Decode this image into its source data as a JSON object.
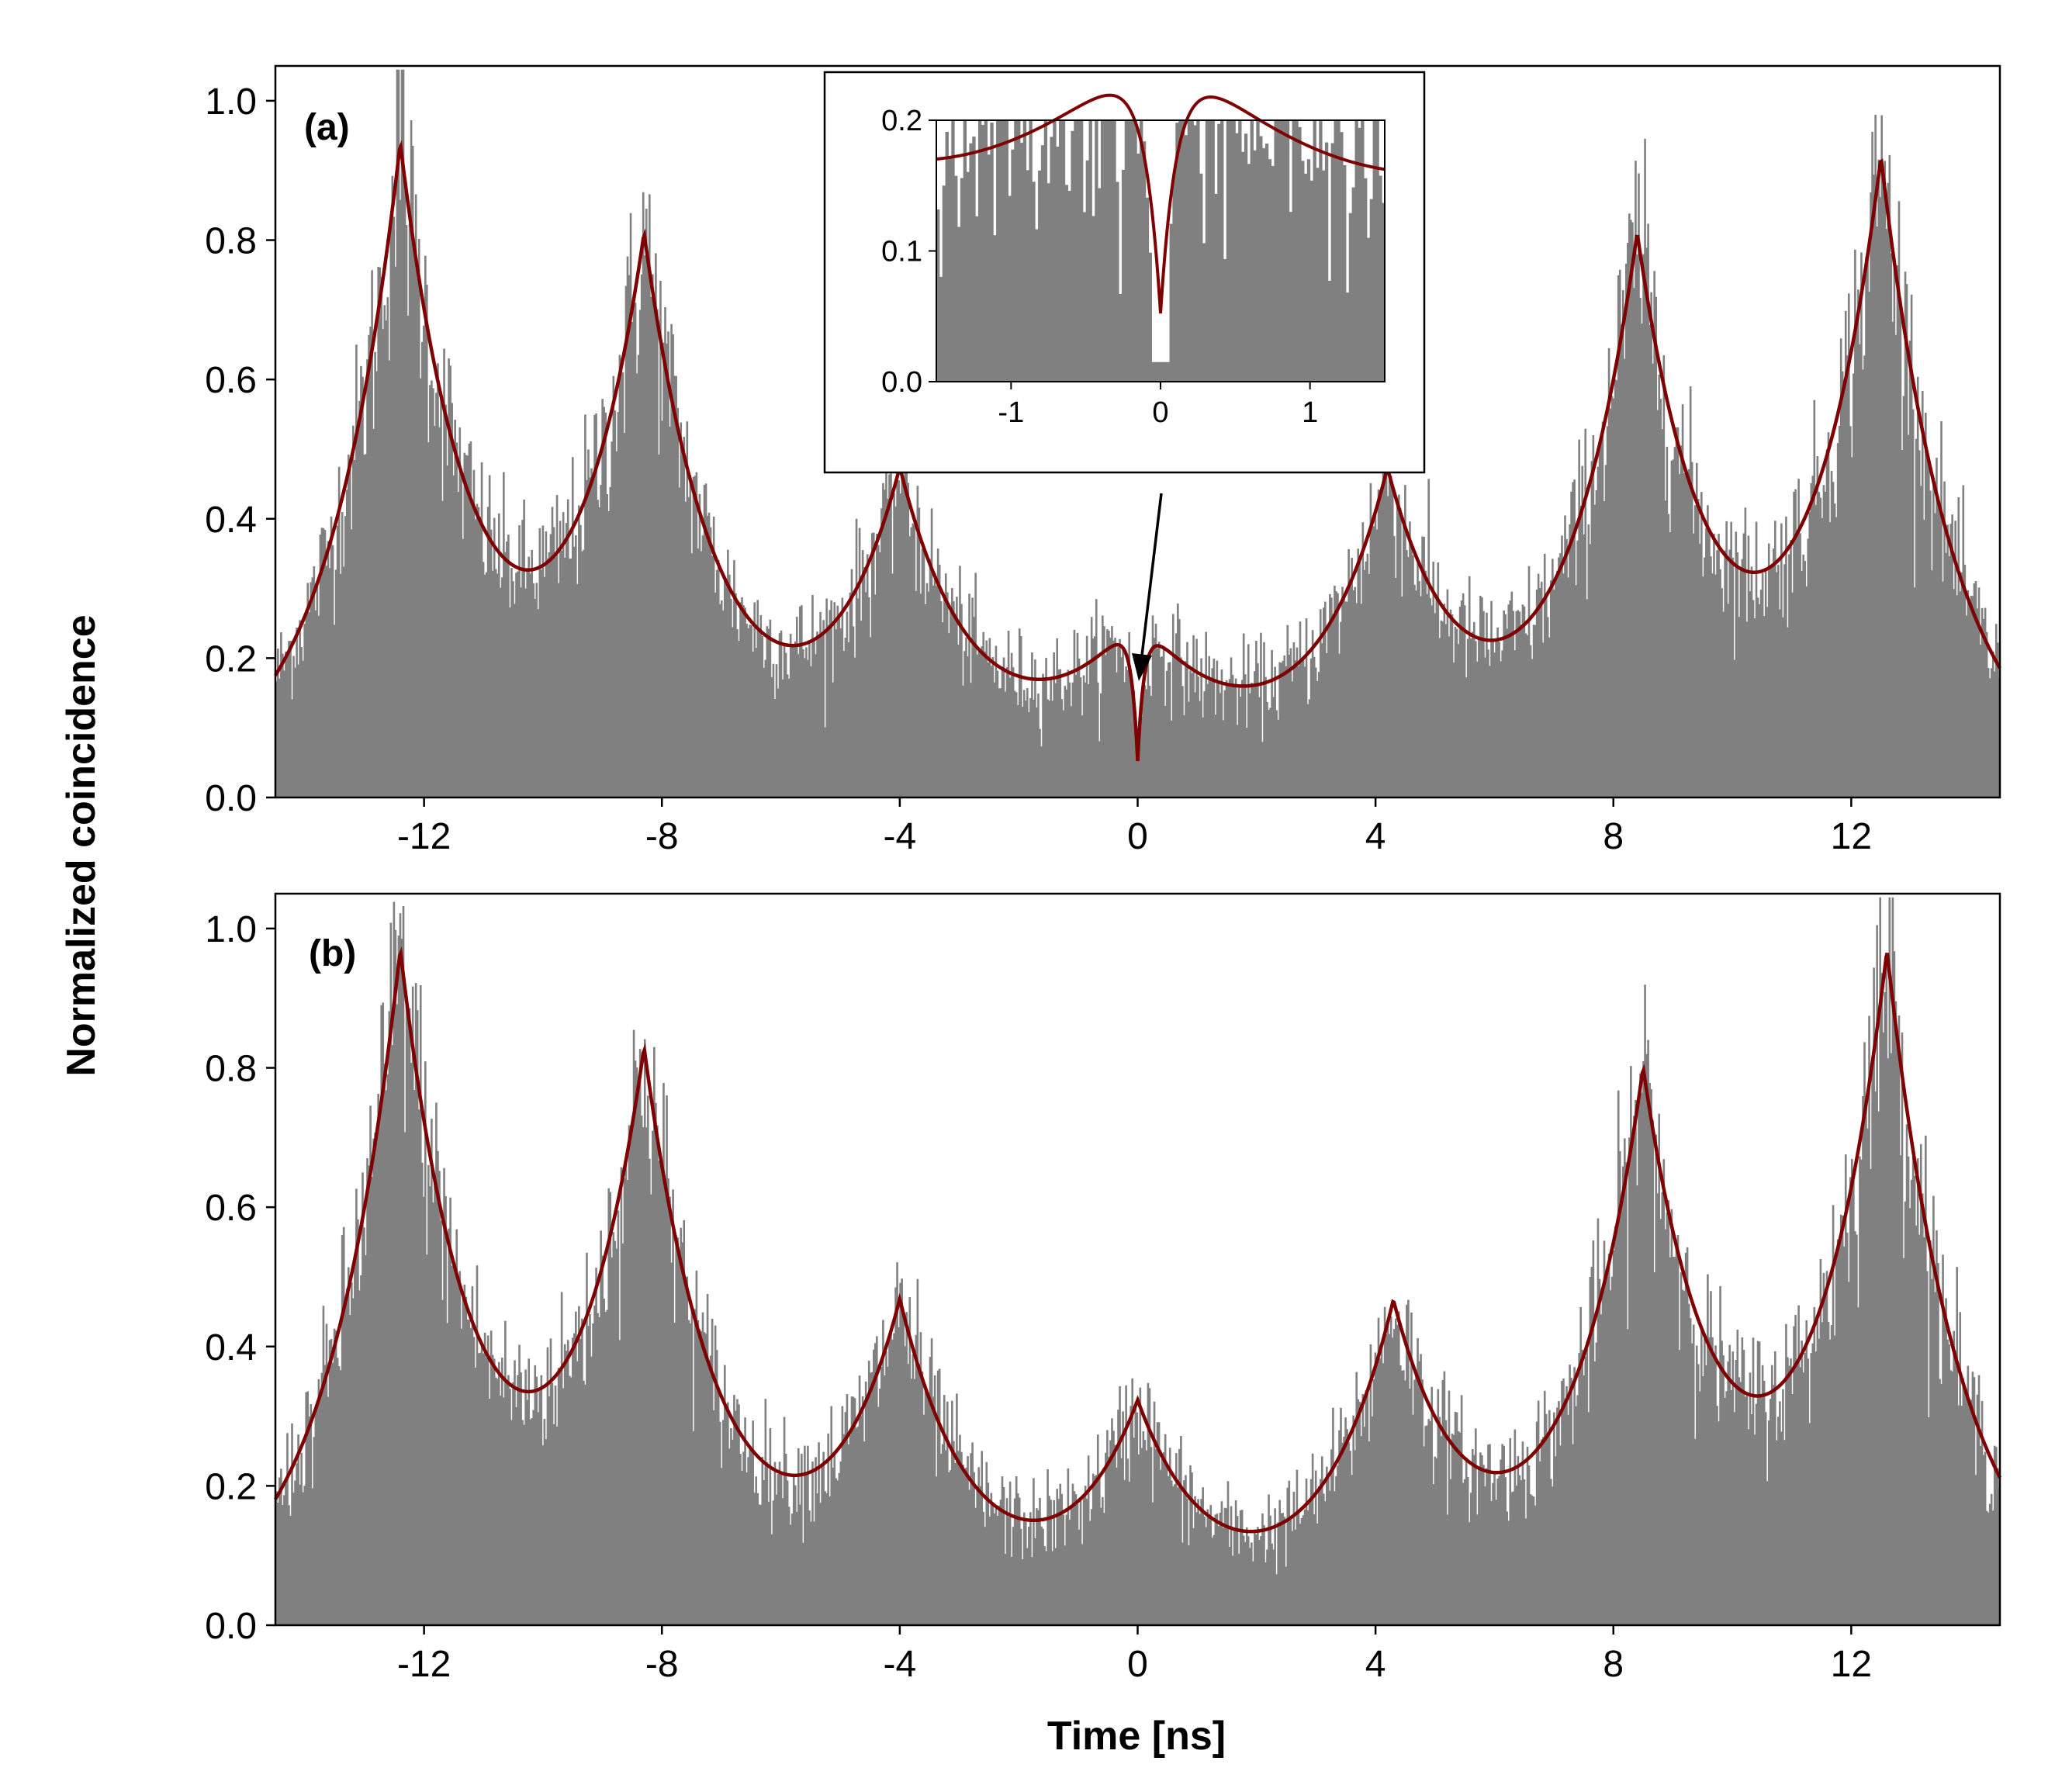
{
  "colors": {
    "histogram": "#808080",
    "fit_curve": "#7f0000",
    "axis": "#000000",
    "background": "#ffffff"
  },
  "figure": {
    "ylabel": "Normalized coincidence",
    "xlabel": "Time [ns]"
  },
  "chart_data": [
    {
      "id": "a",
      "type": "bar",
      "panel_label": "(a)",
      "description_series": [
        "histogram",
        "fit"
      ],
      "xlim": [
        -14.5,
        14.5
      ],
      "ylim": [
        0,
        1.05
      ],
      "xticks": [
        -12,
        -8,
        -4,
        0,
        4,
        8,
        12
      ],
      "xtick_labels": [
        "-12",
        "-8",
        "-4",
        "0",
        "4",
        "8",
        "12"
      ],
      "yticks": [
        0,
        0.2,
        0.4,
        0.6,
        0.8,
        1.0
      ],
      "ytick_labels": [
        "0.0",
        "0.2",
        "0.4",
        "0.6",
        "0.8",
        "1.0"
      ],
      "peaks": [
        {
          "t": -12.4,
          "height": 0.91
        },
        {
          "t": -8.3,
          "height": 0.76
        },
        {
          "t": -4.0,
          "height": 0.42
        },
        {
          "t": 4.2,
          "height": 0.42
        },
        {
          "t": 8.4,
          "height": 0.76
        },
        {
          "t": 12.5,
          "height": 0.89
        }
      ],
      "decay_ns": 1.25,
      "center_dip": {
        "t": 0,
        "side_amplitude": 0.16,
        "min": 0.02,
        "side_peak_t": 0.4
      },
      "inset": {
        "xlim": [
          -1.5,
          1.5
        ],
        "ylim": [
          0,
          0.2
        ],
        "xticks": [
          -1,
          0,
          1
        ],
        "xtick_labels": [
          "-1",
          "0",
          "1"
        ],
        "yticks": [
          0,
          0.1,
          0.2
        ],
        "ytick_labels": [
          "0.0",
          "0.1",
          "0.2"
        ],
        "annotation": "arrow pointing to center dip at t = 0"
      }
    },
    {
      "id": "b",
      "type": "bar",
      "panel_label": "(b)",
      "description_series": [
        "histogram",
        "fit"
      ],
      "xlim": [
        -14.5,
        14.5
      ],
      "ylim": [
        0,
        1.05
      ],
      "xticks": [
        -12,
        -8,
        -4,
        0,
        4,
        8,
        12
      ],
      "xtick_labels": [
        "-12",
        "-8",
        "-4",
        "0",
        "4",
        "8",
        "12"
      ],
      "yticks": [
        0,
        0.2,
        0.4,
        0.6,
        0.8,
        1.0
      ],
      "ytick_labels": [
        "0.0",
        "0.2",
        "0.4",
        "0.6",
        "0.8",
        "1.0"
      ],
      "peaks": [
        {
          "t": -12.4,
          "height": 0.94
        },
        {
          "t": -8.3,
          "height": 0.78
        },
        {
          "t": -4.0,
          "height": 0.43
        },
        {
          "t": 0.0,
          "height": 0.29
        },
        {
          "t": 4.3,
          "height": 0.43
        },
        {
          "t": 8.5,
          "height": 0.75
        },
        {
          "t": 12.6,
          "height": 0.94
        }
      ],
      "decay_ns": 1.25
    }
  ]
}
